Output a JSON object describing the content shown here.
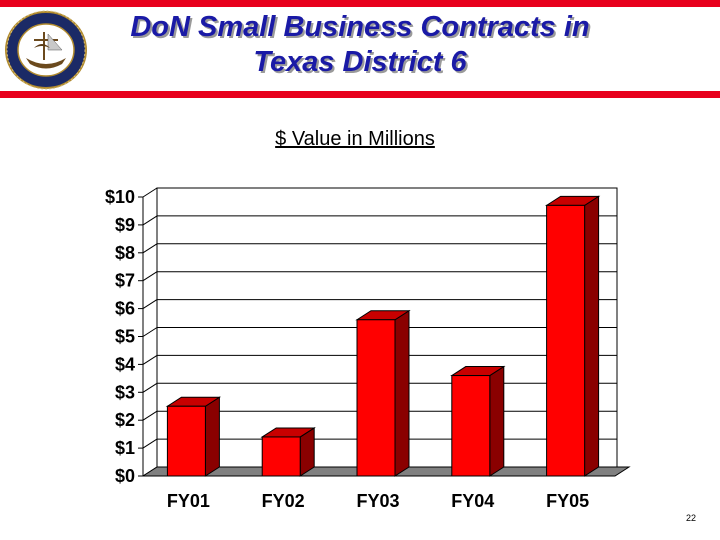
{
  "header": {
    "title_line1": "DoN Small Business Contracts in",
    "title_line2": "Texas District 6"
  },
  "subtitle": "$ Value in Millions",
  "page_number": "22",
  "colors": {
    "accent_bar": "#e8001c",
    "title": "#1a1aa6",
    "bar_front": "#ff0000",
    "bar_side": "#8a0000",
    "bar_top": "#c80000",
    "floor": "#808080"
  },
  "chart_data": {
    "type": "bar",
    "categories": [
      "FY01",
      "FY02",
      "FY03",
      "FY04",
      "FY05"
    ],
    "values": [
      2.5,
      1.4,
      5.6,
      3.6,
      9.7
    ],
    "ylim": [
      0,
      10
    ],
    "yticks": [
      0,
      1,
      2,
      3,
      4,
      5,
      6,
      7,
      8,
      9,
      10
    ],
    "ytick_labels": [
      "$0",
      "$1",
      "$2",
      "$3",
      "$4",
      "$5",
      "$6",
      "$7",
      "$8",
      "$9",
      "$10"
    ],
    "grid": true,
    "style": "3d"
  }
}
